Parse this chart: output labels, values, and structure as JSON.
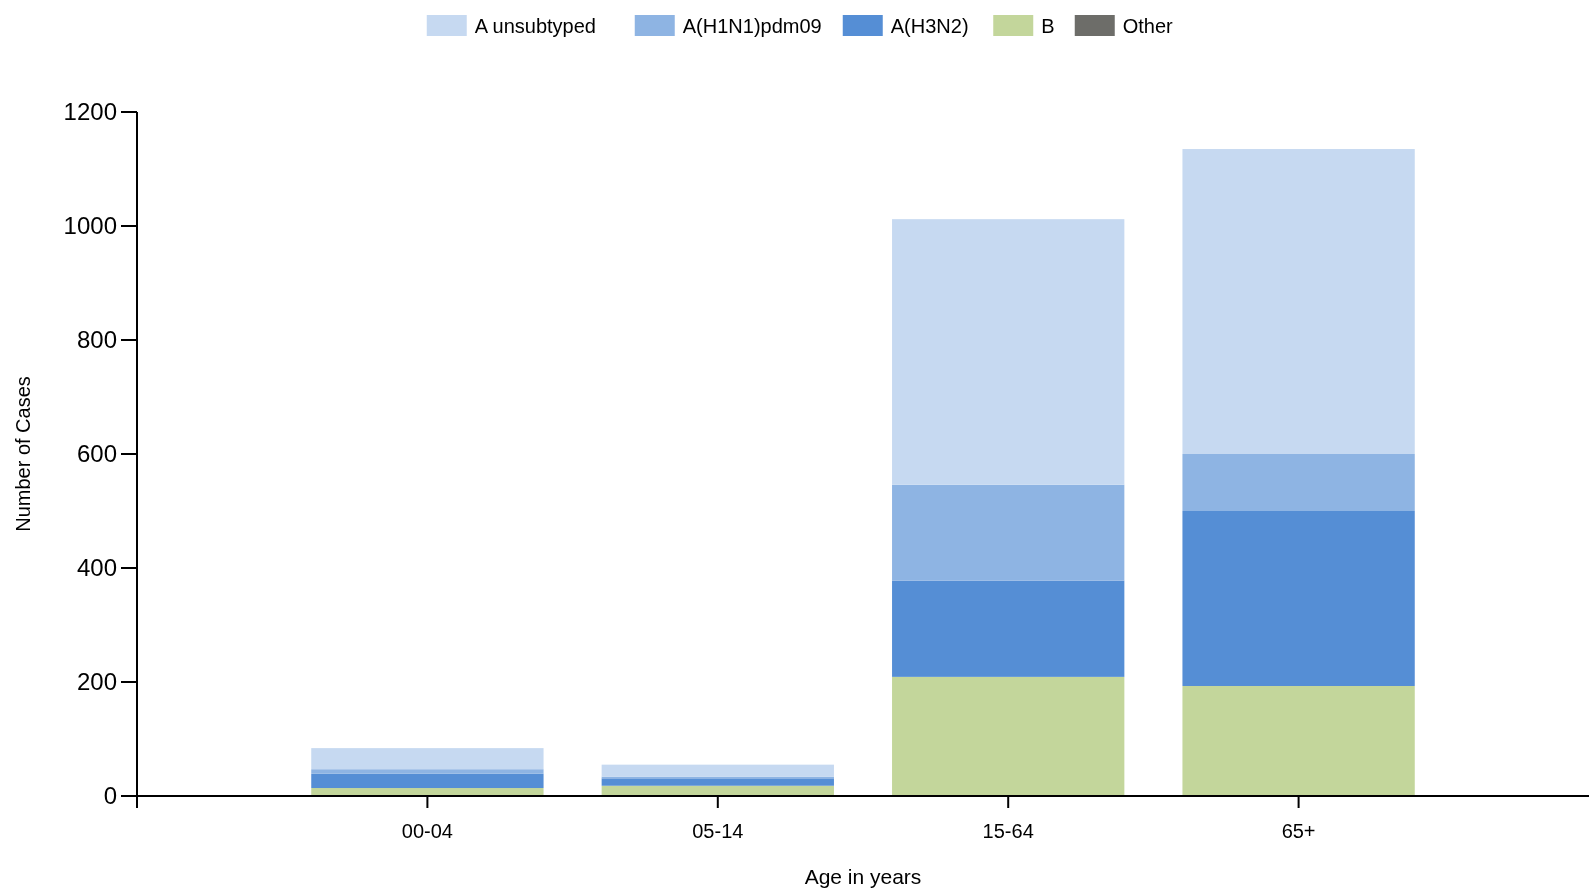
{
  "chart_data": {
    "type": "bar",
    "stacked": true,
    "xlabel": "Age in years",
    "ylabel": "Number of Cases",
    "categories": [
      "00-04",
      "05-14",
      "15-64",
      "65+"
    ],
    "series": [
      {
        "name": "Other",
        "color": "#6d6d69",
        "values": [
          0,
          0,
          0,
          0
        ]
      },
      {
        "name": "B",
        "color": "#c3d69b",
        "values": [
          14,
          18,
          209,
          193
        ]
      },
      {
        "name": "A(H3N2)",
        "color": "#558ed5",
        "values": [
          25,
          13,
          169,
          307
        ]
      },
      {
        "name": "A(H1N1)pdm09",
        "color": "#8eb4e3",
        "values": [
          8,
          3,
          168,
          100
        ]
      },
      {
        "name": "A unsubtyped",
        "color": "#c6d9f1",
        "values": [
          37,
          21,
          466,
          535
        ]
      }
    ],
    "ylim": [
      0,
      1200
    ],
    "yticks": [
      0,
      200,
      400,
      600,
      800,
      1000,
      1200
    ],
    "grid": false,
    "legend": "top"
  }
}
